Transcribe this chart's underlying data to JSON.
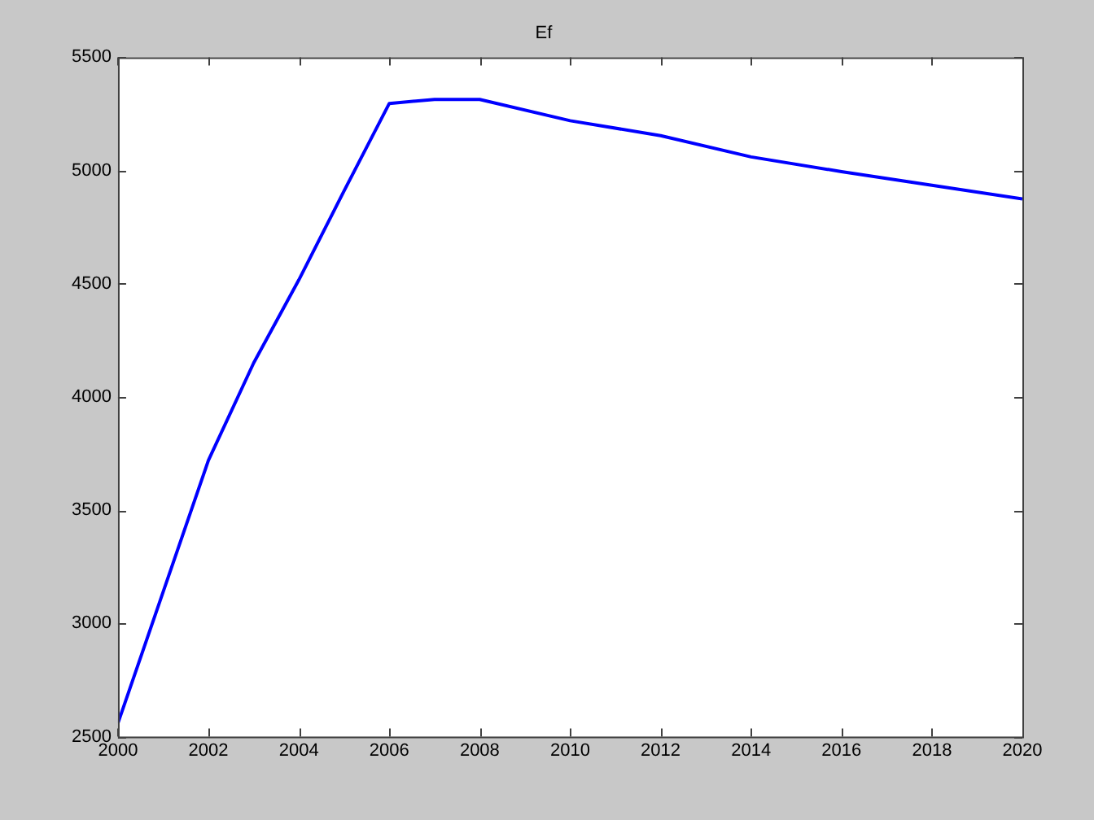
{
  "chart_data": {
    "type": "line",
    "title": "Ef",
    "x": [
      2000,
      2001,
      2002,
      2003,
      2004,
      2005,
      2006,
      2007,
      2008,
      2010,
      2012,
      2014,
      2016,
      2018,
      2020
    ],
    "series": [
      {
        "color": "#0000ff",
        "values": [
          2560,
          3140,
          3720,
          4150,
          4517,
          4910,
          5296,
          5314,
          5314,
          5220,
          5154,
          5060,
          4995,
          4935,
          4875
        ]
      }
    ],
    "xlim": [
      2000,
      2020
    ],
    "xticks": [
      2000,
      2002,
      2004,
      2006,
      2008,
      2010,
      2012,
      2014,
      2016,
      2018,
      2020
    ],
    "ylim": [
      2500,
      5500
    ],
    "yticks": [
      2500,
      3000,
      3500,
      4000,
      4500,
      5000,
      5500
    ],
    "grid": false,
    "legend": false,
    "marker": "none",
    "line_style": "solid"
  }
}
